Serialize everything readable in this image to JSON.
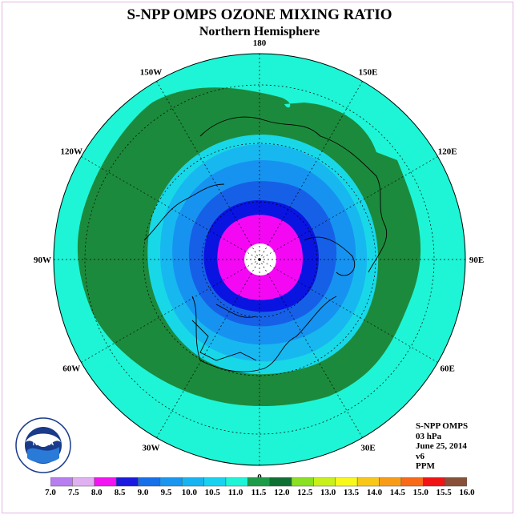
{
  "header": {
    "title": "S-NPP OMPS OZONE MIXING RATIO",
    "subtitle": "Northern Hemisphere"
  },
  "map": {
    "projection": "north-polar-stereographic",
    "longitude_labels": [
      {
        "text": "90E",
        "lon": 90
      },
      {
        "text": "60E",
        "lon": 60
      },
      {
        "text": "30E",
        "lon": 30
      },
      {
        "text": "0",
        "lon": 0
      },
      {
        "text": "30W",
        "lon": -30
      },
      {
        "text": "60W",
        "lon": -60
      },
      {
        "text": "90W",
        "lon": -90
      },
      {
        "text": "120W",
        "lon": -120
      },
      {
        "text": "150W",
        "lon": -150
      },
      {
        "text": "180",
        "lon": 180
      },
      {
        "text": "150E",
        "lon": 150
      },
      {
        "text": "120E",
        "lon": 120
      }
    ],
    "colors": {
      "ocean_background": "#1df5d6",
      "band_11_0": "#1c8a3c",
      "band_10_5": "#18d8e8",
      "band_10_0": "#17b8f0",
      "band_9_5": "#1693f0",
      "band_9_0": "#1660e8",
      "band_8_5": "#0a14e0",
      "band_8_0": "#f408f4",
      "pole_nodata": "#ffffff"
    }
  },
  "info": {
    "instrument": "S-NPP OMPS",
    "level": "03 hPa",
    "date": "June 25, 2014",
    "version": "v6",
    "units": "PPM"
  },
  "colorbar": {
    "labels": [
      "7.0",
      "7.5",
      "8.0",
      "8.5",
      "9.0",
      "9.5",
      "10.0",
      "10.5",
      "11.0",
      "11.5",
      "12.0",
      "12.5",
      "13.0",
      "13.5",
      "14.0",
      "14.5",
      "15.0",
      "15.5",
      "16.0"
    ],
    "colors": [
      "#b77ef0",
      "#e0b0f0",
      "#f214f2",
      "#1a1ae0",
      "#1670e8",
      "#1896f0",
      "#18b4f2",
      "#18d2f0",
      "#1cf6d6",
      "#1c9c48",
      "#0f7034",
      "#8ae022",
      "#c8f01a",
      "#f8f81c",
      "#f8c818",
      "#f89c18",
      "#f86a18",
      "#f01414",
      "#885038"
    ]
  }
}
